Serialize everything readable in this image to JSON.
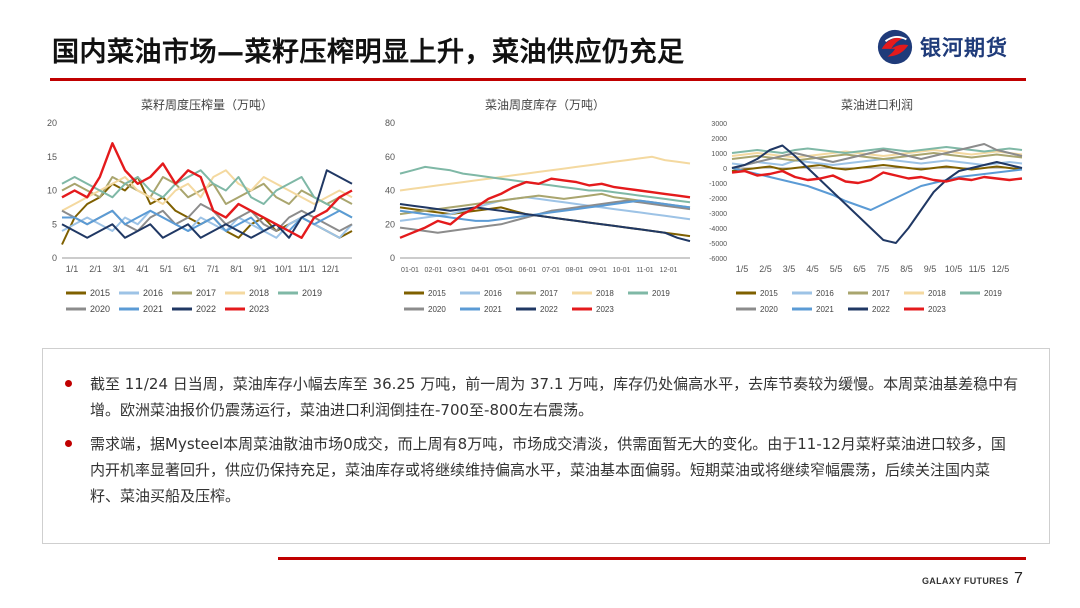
{
  "slide": {
    "title": "国内菜油市场—菜籽压榨明显上升，菜油供应仍充足",
    "logo_text": "银河期货",
    "footer": "GALAXY FUTURES",
    "page_number": "7",
    "accent_color": "#c00000"
  },
  "bullets": [
    "截至 11/24 日当周，菜油库存小幅去库至 36.25 万吨，前一周为 37.1 万吨，库存仍处偏高水平，去库节奏较为缓慢。本周菜油基差稳中有增。欧洲菜油报价仍震荡运行，菜油进口利润倒挂在-700至-800左右震荡。",
    "需求端，据Mysteel本周菜油散油市场0成交，而上周有8万吨，市场成交清淡，供需面暂无大的变化。由于11-12月菜籽菜油进口较多，国内开机率显著回升，供应仍保持充足，菜油库存或将继续维持偏高水平，菜油基本面偏弱。短期菜油或将继续窄幅震荡，后续关注国内菜籽、菜油买船及压榨。"
  ],
  "chart_data": [
    {
      "type": "line",
      "title": "菜籽周度压榨量（万吨）",
      "x_ticks": [
        "1/1",
        "2/1",
        "3/1",
        "4/1",
        "5/1",
        "6/1",
        "7/1",
        "8/1",
        "9/1",
        "10/1",
        "11/1",
        "12/1"
      ],
      "y_ticks": [
        "0",
        "5",
        "10",
        "15",
        "20"
      ],
      "ylim": [
        0,
        20
      ],
      "legend_position": "bottom",
      "series": [
        {
          "name": "2015",
          "color": "#7f6000",
          "values": [
            2,
            6,
            8,
            9,
            11,
            10,
            12,
            8,
            9,
            7,
            6,
            5,
            6,
            4,
            3,
            5,
            6,
            4,
            5,
            6,
            5,
            4,
            3,
            4
          ]
        },
        {
          "name": "2016",
          "color": "#9dc3e6",
          "values": [
            4,
            5,
            6,
            5,
            4,
            6,
            5,
            7,
            6,
            5,
            4,
            6,
            5,
            4,
            6,
            5,
            4,
            3,
            5,
            6,
            5,
            4,
            3,
            5
          ]
        },
        {
          "name": "2017",
          "color": "#a9a56e",
          "values": [
            10,
            11,
            10,
            9,
            12,
            11,
            10,
            9,
            12,
            11,
            9,
            10,
            11,
            8,
            9,
            10,
            11,
            9,
            8,
            10,
            9,
            8,
            9,
            8
          ]
        },
        {
          "name": "2018",
          "color": "#f4d9a0",
          "values": [
            7,
            8,
            9,
            10,
            11,
            12,
            10,
            9,
            8,
            10,
            11,
            9,
            12,
            13,
            11,
            10,
            12,
            11,
            10,
            9,
            8,
            9,
            10,
            9
          ]
        },
        {
          "name": "2019",
          "color": "#7fb8a6",
          "values": [
            11,
            12,
            11,
            10,
            9,
            11,
            12,
            10,
            9,
            11,
            12,
            13,
            11,
            10,
            12,
            9,
            8,
            10,
            11,
            12,
            9,
            8,
            7,
            6
          ]
        },
        {
          "name": "2020",
          "color": "#8c8c8c",
          "values": [
            7,
            6,
            5,
            6,
            7,
            5,
            4,
            6,
            7,
            5,
            6,
            8,
            7,
            5,
            6,
            7,
            5,
            4,
            6,
            7,
            6,
            5,
            4,
            5
          ]
        },
        {
          "name": "2021",
          "color": "#5b9bd5",
          "values": [
            6,
            6,
            5,
            6,
            7,
            5,
            6,
            7,
            6,
            5,
            4,
            5,
            6,
            4,
            5,
            6,
            4,
            5,
            4,
            6,
            5,
            6,
            7,
            6
          ]
        },
        {
          "name": "2022",
          "color": "#203864",
          "values": [
            5,
            4,
            3,
            4,
            5,
            3,
            4,
            5,
            3,
            4,
            5,
            3,
            4,
            5,
            4,
            3,
            4,
            5,
            3,
            6,
            7,
            13,
            12,
            11
          ]
        },
        {
          "name": "2023",
          "color": "#e41a1c",
          "values": [
            9,
            10,
            9,
            12,
            17,
            13,
            11,
            12,
            14,
            11,
            13,
            12,
            7,
            6,
            8,
            7,
            6,
            5,
            4,
            3,
            6,
            7,
            9,
            10
          ]
        }
      ]
    },
    {
      "type": "line",
      "title": "菜油周度库存（万吨）",
      "x_ticks": [
        "01-01",
        "02-01",
        "03-01",
        "04-01",
        "05-01",
        "06-01",
        "07-01",
        "08-01",
        "09-01",
        "10-01",
        "11-01",
        "12-01"
      ],
      "y_ticks": [
        "0",
        "20",
        "40",
        "60",
        "80"
      ],
      "ylim": [
        0,
        80
      ],
      "legend_position": "bottom",
      "series": [
        {
          "name": "2015",
          "color": "#7f6000",
          "values": [
            30,
            29,
            28,
            27,
            26,
            27,
            28,
            29,
            30,
            28,
            26,
            25,
            24,
            23,
            22,
            21,
            20,
            19,
            18,
            17,
            16,
            15,
            14,
            13
          ]
        },
        {
          "name": "2016",
          "color": "#9dc3e6",
          "values": [
            22,
            23,
            24,
            25,
            26,
            28,
            30,
            32,
            34,
            35,
            36,
            35,
            34,
            33,
            32,
            31,
            30,
            29,
            28,
            27,
            26,
            25,
            24,
            23
          ]
        },
        {
          "name": "2017",
          "color": "#a9a56e",
          "values": [
            26,
            27,
            28,
            29,
            30,
            31,
            32,
            33,
            34,
            35,
            36,
            37,
            36,
            35,
            36,
            37,
            38,
            36,
            35,
            34,
            33,
            32,
            31,
            30
          ]
        },
        {
          "name": "2018",
          "color": "#f4d9a0",
          "values": [
            40,
            41,
            42,
            43,
            44,
            45,
            46,
            47,
            48,
            49,
            50,
            51,
            52,
            53,
            54,
            55,
            56,
            57,
            58,
            59,
            60,
            58,
            57,
            56
          ]
        },
        {
          "name": "2019",
          "color": "#7fb8a6",
          "values": [
            50,
            52,
            54,
            53,
            52,
            50,
            49,
            48,
            47,
            46,
            45,
            44,
            43,
            42,
            41,
            40,
            40,
            39,
            38,
            37,
            36,
            35,
            34,
            33
          ]
        },
        {
          "name": "2020",
          "color": "#8c8c8c",
          "values": [
            18,
            17,
            16,
            15,
            16,
            17,
            18,
            19,
            20,
            22,
            24,
            26,
            28,
            29,
            30,
            31,
            32,
            33,
            34,
            33,
            32,
            31,
            30,
            29
          ]
        },
        {
          "name": "2021",
          "color": "#5b9bd5",
          "values": [
            28,
            27,
            26,
            25,
            24,
            23,
            22,
            22,
            23,
            24,
            25,
            26,
            27,
            28,
            29,
            30,
            31,
            32,
            33,
            34,
            33,
            32,
            31,
            30
          ]
        },
        {
          "name": "2022",
          "color": "#203864",
          "values": [
            32,
            31,
            30,
            29,
            28,
            29,
            30,
            29,
            28,
            27,
            26,
            25,
            24,
            23,
            22,
            21,
            20,
            19,
            18,
            17,
            16,
            15,
            12,
            10
          ]
        },
        {
          "name": "2023",
          "color": "#e41a1c",
          "values": [
            12,
            15,
            18,
            22,
            20,
            26,
            30,
            35,
            38,
            42,
            45,
            44,
            47,
            46,
            45,
            43,
            44,
            42,
            41,
            40,
            39,
            38,
            37,
            36
          ]
        }
      ]
    },
    {
      "type": "line",
      "title": "菜油进口利润",
      "x_ticks": [
        "1/5",
        "2/5",
        "3/5",
        "4/5",
        "5/5",
        "6/5",
        "7/5",
        "8/5",
        "9/5",
        "10/5",
        "11/5",
        "12/5"
      ],
      "y_ticks": [
        "-6000",
        "-5000",
        "-4000",
        "-3000",
        "-2000",
        "-1000",
        "0",
        "1000",
        "2000",
        "3000"
      ],
      "ylim": [
        -6000,
        3000
      ],
      "legend_position": "bottom",
      "series": [
        {
          "name": "2015",
          "color": "#7f6000",
          "values": [
            -200,
            -100,
            0,
            100,
            -100,
            0,
            100,
            200,
            0,
            -100,
            0,
            100,
            200,
            100,
            0,
            -100,
            0,
            100,
            0,
            -100,
            0,
            100,
            0,
            -100
          ]
        },
        {
          "name": "2016",
          "color": "#9dc3e6",
          "values": [
            300,
            200,
            400,
            300,
            200,
            500,
            400,
            300,
            200,
            300,
            400,
            500,
            600,
            500,
            400,
            300,
            400,
            500,
            400,
            300,
            200,
            300,
            400,
            300
          ]
        },
        {
          "name": "2017",
          "color": "#a9a56e",
          "values": [
            600,
            700,
            800,
            700,
            600,
            500,
            600,
            700,
            800,
            900,
            800,
            700,
            600,
            700,
            800,
            900,
            1000,
            900,
            800,
            700,
            800,
            900,
            800,
            700
          ]
        },
        {
          "name": "2018",
          "color": "#f4d9a0",
          "values": [
            800,
            900,
            1000,
            900,
            800,
            700,
            800,
            900,
            1000,
            1100,
            1000,
            900,
            800,
            900,
            1000,
            1100,
            1200,
            1100,
            1000,
            900,
            1000,
            1100,
            1000,
            900
          ]
        },
        {
          "name": "2019",
          "color": "#7fb8a6",
          "values": [
            1000,
            1100,
            1200,
            1100,
            1000,
            1200,
            1300,
            1200,
            1100,
            1000,
            1100,
            1200,
            1300,
            1200,
            1100,
            1200,
            1300,
            1400,
            1300,
            1200,
            1100,
            1200,
            1300,
            1200
          ]
        },
        {
          "name": "2020",
          "color": "#8c8c8c",
          "values": [
            0,
            200,
            400,
            600,
            800,
            1000,
            800,
            600,
            400,
            600,
            800,
            1000,
            1200,
            1000,
            800,
            600,
            800,
            1000,
            1200,
            1400,
            1600,
            1200,
            1000,
            800
          ]
        },
        {
          "name": "2021",
          "color": "#5b9bd5",
          "values": [
            0,
            -200,
            -400,
            -600,
            -800,
            -1000,
            -1200,
            -1500,
            -1800,
            -2200,
            -2500,
            -2800,
            -2400,
            -2000,
            -1600,
            -1200,
            -1000,
            -800,
            -600,
            -500,
            -400,
            -300,
            -200,
            -100
          ]
        },
        {
          "name": "2022",
          "color": "#203864",
          "values": [
            0,
            200,
            600,
            1200,
            1500,
            800,
            0,
            -800,
            -1600,
            -2400,
            -3200,
            -4000,
            -4800,
            -5000,
            -4000,
            -2800,
            -1600,
            -800,
            -200,
            0,
            200,
            400,
            200,
            0
          ]
        },
        {
          "name": "2023",
          "color": "#e41a1c",
          "values": [
            -300,
            -200,
            -500,
            -400,
            -200,
            -600,
            -800,
            -700,
            -500,
            -900,
            -1000,
            -800,
            -300,
            -500,
            -700,
            -600,
            -800,
            -900,
            -700,
            -800,
            -600,
            -700,
            -800,
            -700
          ]
        }
      ]
    }
  ]
}
